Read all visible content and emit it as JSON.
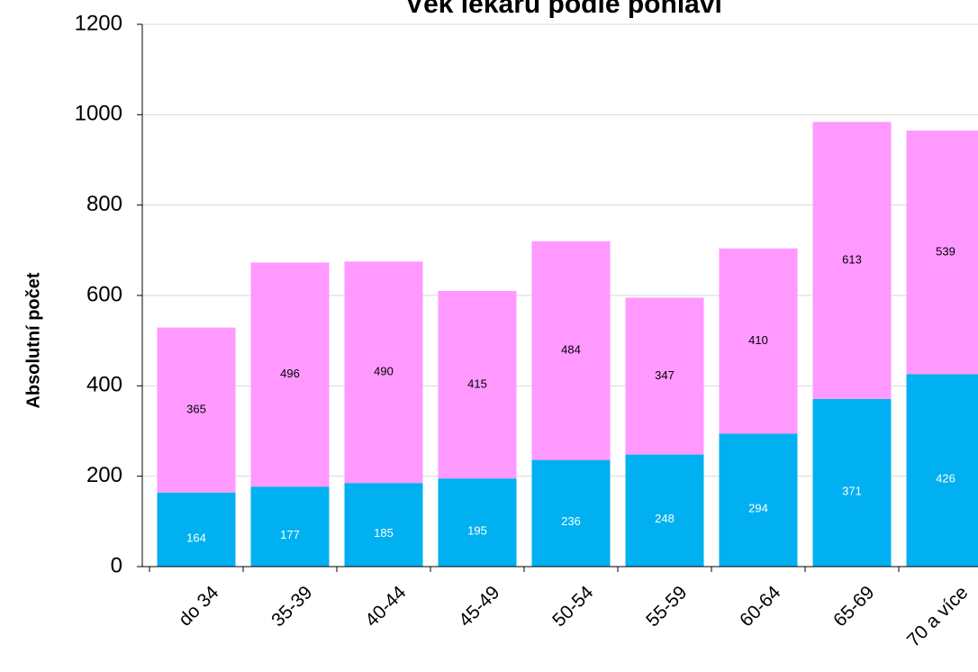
{
  "chart_data": {
    "type": "stacked_bar",
    "title": "Věk lékařů podle pohlaví",
    "y_label": "Absolutní počet",
    "categories": [
      "do 34",
      "35-39",
      "40-44",
      "45-49",
      "50-54",
      "55-59",
      "60-64",
      "65-69",
      "70 a více"
    ],
    "series": [
      {
        "color": "#00b0f0",
        "values": [
          164,
          177,
          185,
          195,
          236,
          248,
          294,
          371,
          426
        ]
      },
      {
        "color": "#ff99ff",
        "values": [
          365,
          496,
          490,
          415,
          484,
          347,
          410,
          613,
          539
        ]
      }
    ],
    "ylim": [
      0,
      1200
    ],
    "yticks": [
      0,
      200,
      400,
      600,
      800,
      1000,
      1200
    ],
    "grid": true
  }
}
